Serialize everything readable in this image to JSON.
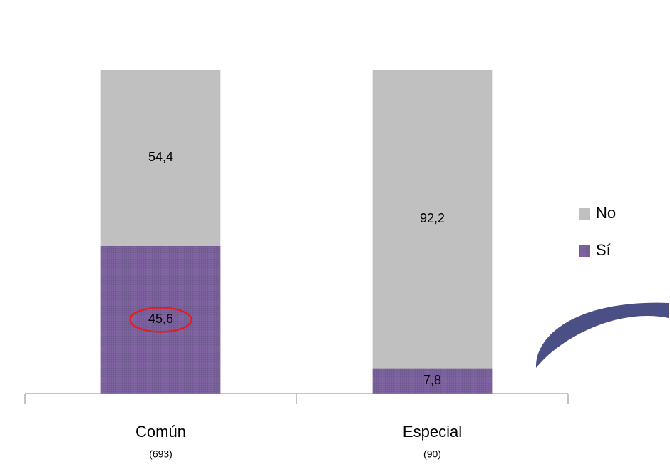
{
  "chart_data": {
    "type": "stacked_bar",
    "categories": [
      "Común",
      "Especial"
    ],
    "category_sublabels": [
      "(693)",
      "(90)"
    ],
    "series": [
      {
        "name": "Sí",
        "color": "#8064a2",
        "values": [
          45.6,
          7.8
        ],
        "value_labels": [
          "45,6",
          "7,8"
        ]
      },
      {
        "name": "No",
        "color": "#c0c0c0",
        "values": [
          54.4,
          92.2
        ],
        "value_labels": [
          "54,4",
          "92,2"
        ]
      }
    ],
    "legend": "right"
  }
}
